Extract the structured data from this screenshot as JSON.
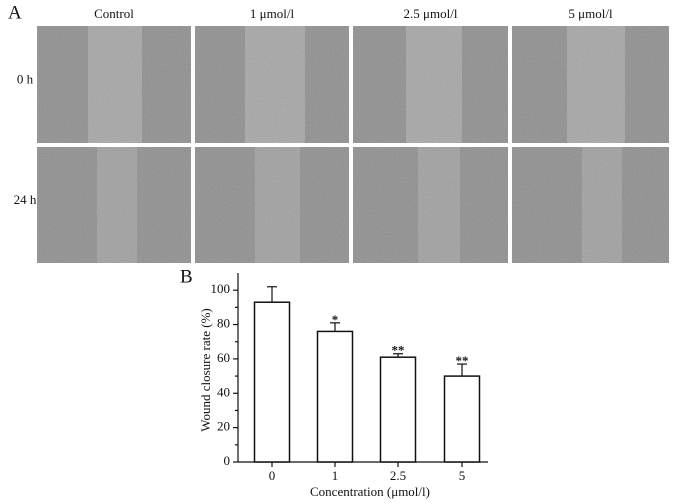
{
  "figure": {
    "panel_a_label": "A",
    "columns": [
      "Control",
      "1 μmol/l",
      "2.5 μmol/l",
      "5 μmol/l"
    ],
    "rows": [
      "0 h",
      "24 h"
    ],
    "panel_b_label": "B"
  },
  "chart_data": {
    "type": "bar",
    "categories": [
      "0",
      "1",
      "2.5",
      "5"
    ],
    "values": [
      93,
      76,
      61,
      50
    ],
    "errors": [
      9,
      5,
      2,
      7
    ],
    "annotations": [
      null,
      "*",
      "**",
      "**"
    ],
    "color": "#ffffff",
    "xlabel": "Concentration (μmol/l)",
    "ylabel": "Wound closure rate (%)",
    "ylim": [
      0,
      110
    ],
    "yticks": [
      0,
      20,
      40,
      60,
      80,
      100
    ],
    "yminorticks": [
      10,
      30,
      50,
      70,
      90
    ]
  }
}
